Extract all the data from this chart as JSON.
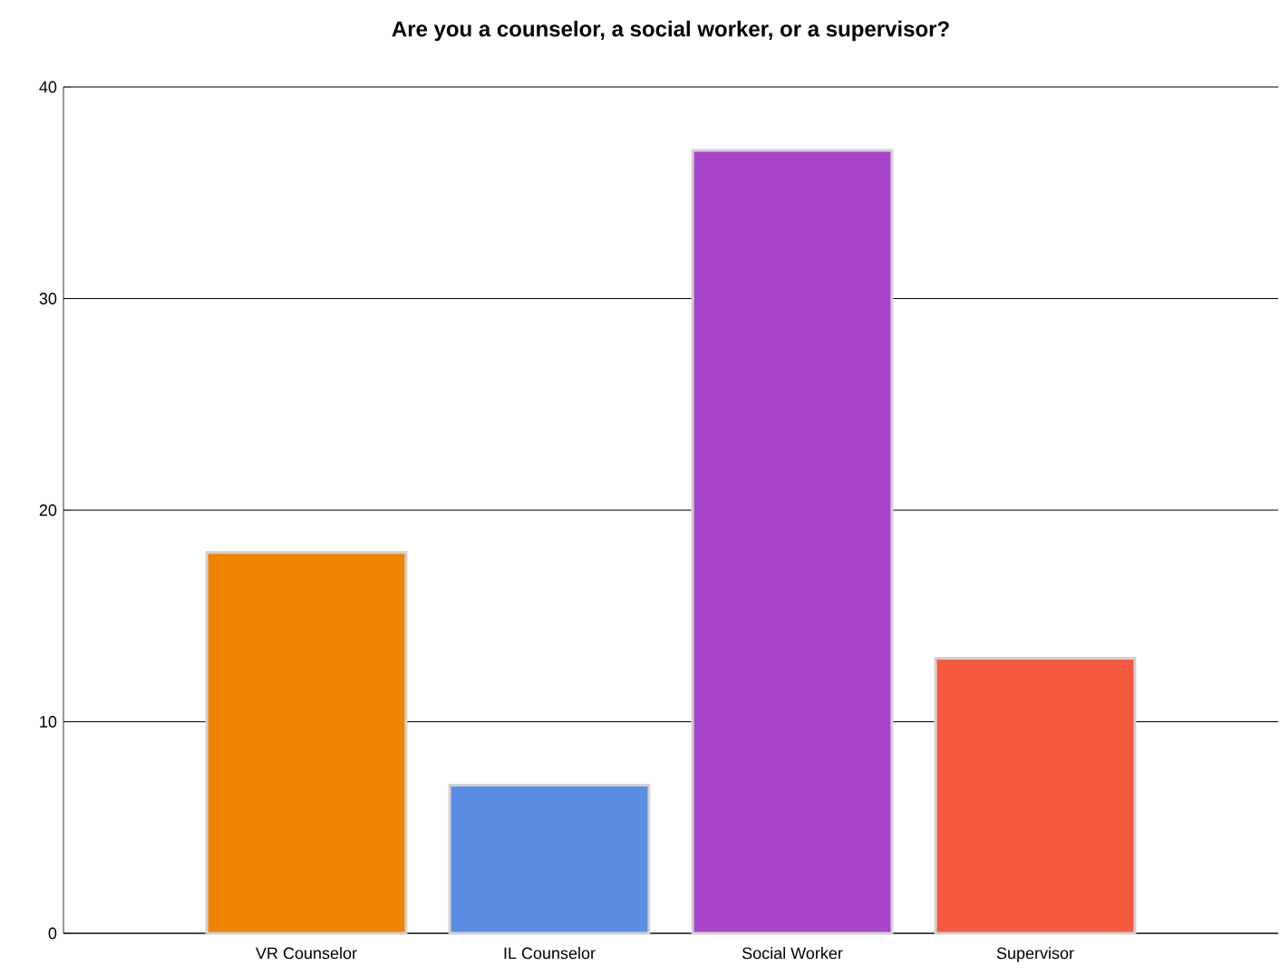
{
  "chart_data": {
    "type": "bar",
    "title": "Are  you a counselor, a social worker, or a supervisor?",
    "categories": [
      "VR Counselor",
      "IL Counselor",
      "Social Worker",
      "Supervisor"
    ],
    "values": [
      18,
      7,
      37,
      13
    ],
    "colors": [
      "#f08300",
      "#5a8ee2",
      "#a945c9",
      "#f45a40"
    ],
    "ylim": [
      0,
      40
    ],
    "yticks": [
      0,
      10,
      20,
      30,
      40
    ],
    "grid": "y"
  }
}
